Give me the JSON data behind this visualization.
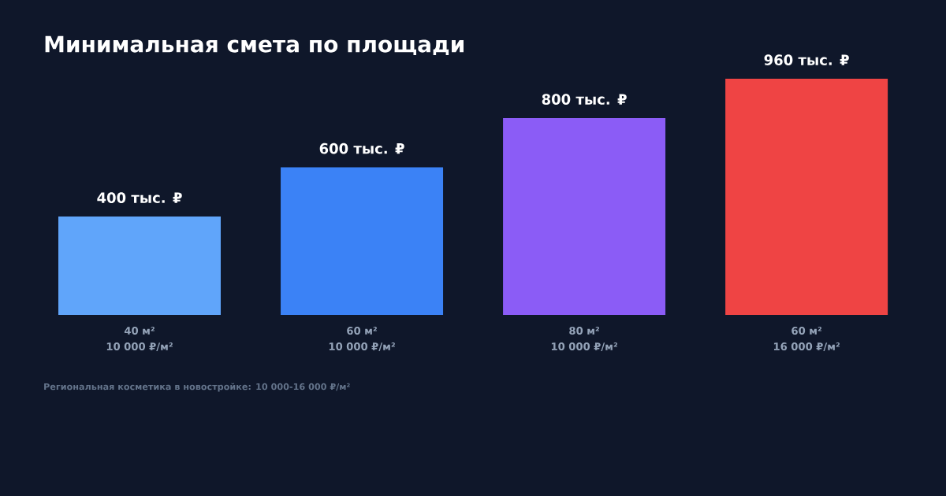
{
  "chart_data": {
    "type": "bar",
    "title": "Минимальная смета по площади",
    "categories": [
      "40 м² 10 000 ₽/м²",
      "60 м² 10 000 ₽/м²",
      "80 м² 10 000 ₽/м²",
      "60 м² 16 000 ₽/м²"
    ],
    "values": [
      400,
      600,
      800,
      960
    ],
    "value_labels": [
      "400 тыс. ₽",
      "600 тыс. ₽",
      "800 тыс. ₽",
      "960 тыс. ₽"
    ],
    "colors": [
      "#60a5fa",
      "#3b82f6",
      "#8b5cf6",
      "#ef4444"
    ],
    "annotations": [
      "Региональная косметика в новостройке: 10 000-16 000 ₽/м²"
    ]
  }
}
